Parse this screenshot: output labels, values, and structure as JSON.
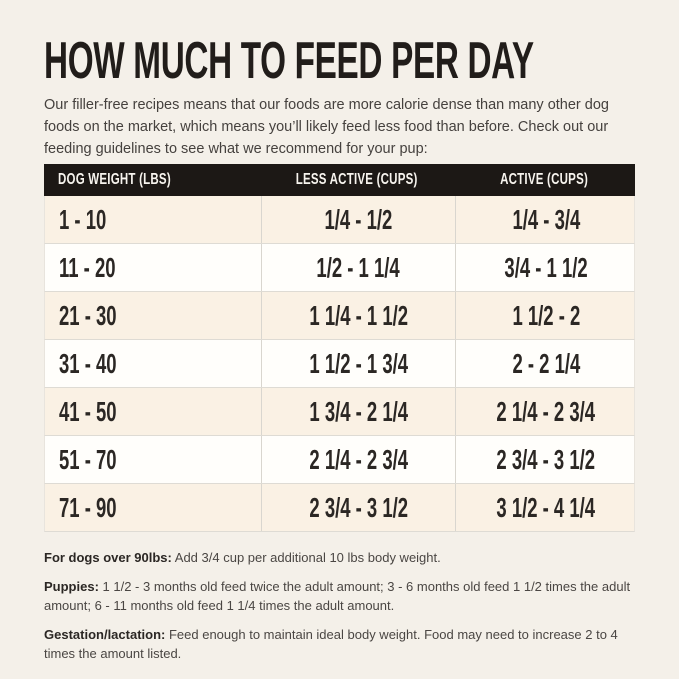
{
  "page": {
    "title": "HOW MUCH TO FEED PER DAY",
    "intro": "Our filler-free recipes means that our foods are more calorie dense than many other dog foods on the market, which means you’ll likely feed less food than before. Check out our feeding guidelines to see what we recommend for your pup:"
  },
  "table": {
    "headers": [
      "DOG WEIGHT (LBS)",
      "LESS ACTIVE (CUPS)",
      "ACTIVE (CUPS)"
    ],
    "rows": [
      {
        "weight": "1 - 10",
        "less_active": "1/4 - 1/2",
        "active": "1/4 - 3/4"
      },
      {
        "weight": "11 - 20",
        "less_active": "1/2 - 1 1/4",
        "active": "3/4 - 1 1/2"
      },
      {
        "weight": "21 - 30",
        "less_active": "1 1/4 - 1 1/2",
        "active": "1 1/2 - 2"
      },
      {
        "weight": "31 - 40",
        "less_active": "1 1/2 - 1 3/4",
        "active": "2 - 2 1/4"
      },
      {
        "weight": "41 - 50",
        "less_active": "1 3/4 - 2 1/4",
        "active": "2 1/4 - 2 3/4"
      },
      {
        "weight": "51 - 70",
        "less_active": "2 1/4 - 2 3/4",
        "active": "2 3/4 - 3 1/2"
      },
      {
        "weight": "71 - 90",
        "less_active": "2 3/4 - 3 1/2",
        "active": "3 1/2 - 4 1/4"
      }
    ]
  },
  "notes": [
    {
      "label": "For dogs over 90lbs:",
      "text": "Add 3/4 cup per additional 10 lbs body weight."
    },
    {
      "label": "Puppies:",
      "text": "1 1/2 - 3 months old feed twice the adult amount; 3 - 6 months old feed 1 1/2 times the adult amount; 6 - 11 months old feed 1 1/4 times the adult amount."
    },
    {
      "label": "Gestation/lactation:",
      "text": "Feed enough to maintain ideal body weight. Food may need to increase 2 to 4 times the amount listed."
    }
  ],
  "colors": {
    "background": "#f4f0e9",
    "header_bg": "#1c1815",
    "header_text": "#f7f4ee",
    "row_stripe": "#faf1e4",
    "row_plain": "#fffefb",
    "title_text": "#211d1a"
  }
}
